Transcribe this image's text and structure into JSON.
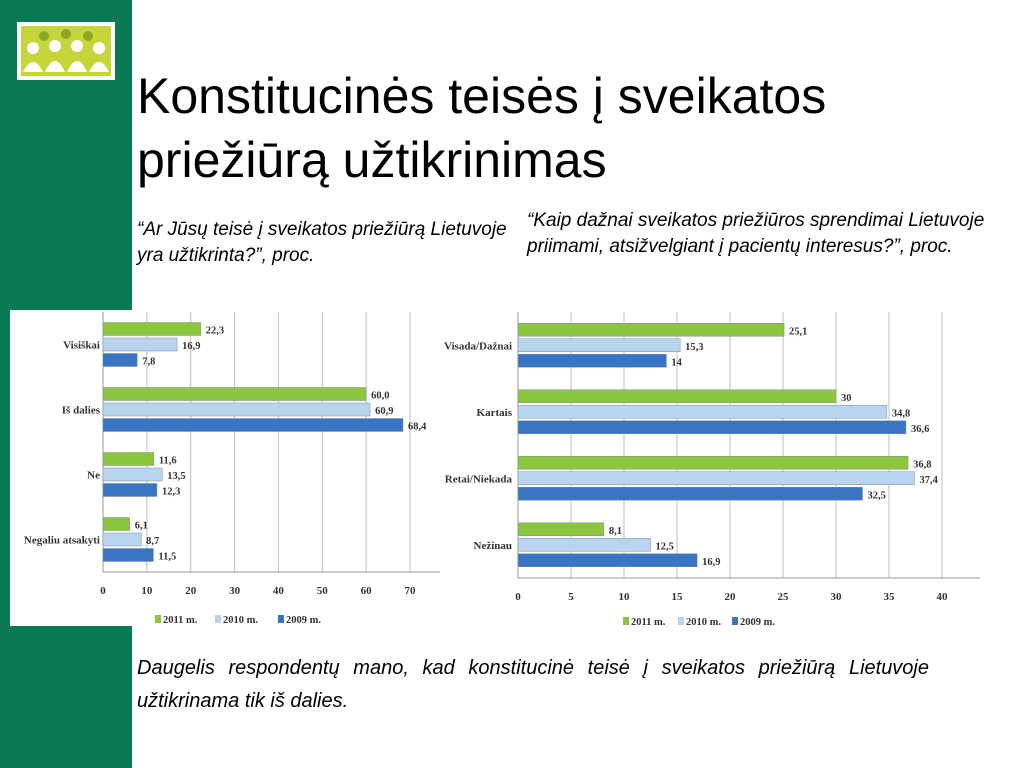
{
  "slide": {
    "title": "Konstitucinės teisės į sveikatos priežiūrą užtikrinimas",
    "question_left": "“Ar Jūsų teisė į sveikatos priežiūrą Lietuvoje yra užtikrinta?”, proc.",
    "question_right": "“Kaip dažnai sveikatos priežiūros sprendimai Lietuvoje priimami, atsižvelgiant į pacientų interesus?”, proc.",
    "conclusion": "Daugelis respondentų mano, kad konstitucinė teisė į sveikatos priežiūrą Lietuvoje užtikrinama tik iš dalies.",
    "colors": {
      "sidebar": "#0a7a52",
      "series_2011": "#8cc63f",
      "series_2010": "#b8d4ee",
      "series_2009": "#3a75c4"
    }
  },
  "chart_data": [
    {
      "type": "bar",
      "orientation": "horizontal",
      "categories": [
        "Visiškai",
        "Iš dalies",
        "Ne",
        "Negaliu atsakyti"
      ],
      "series": [
        {
          "name": "2011 m.",
          "values": [
            22.3,
            60.0,
            11.6,
            6.1
          ],
          "labels": [
            "22,3",
            "60,0",
            "11,6",
            "6,1"
          ]
        },
        {
          "name": "2010 m.",
          "values": [
            16.9,
            60.9,
            13.5,
            8.7
          ],
          "labels": [
            "16,9",
            "60,9",
            "13,5",
            "8,7"
          ]
        },
        {
          "name": "2009 m.",
          "values": [
            7.8,
            68.4,
            12.3,
            11.5
          ],
          "labels": [
            "7,8",
            "68,4",
            "12,3",
            "11,5"
          ]
        }
      ],
      "xlim": [
        0,
        70
      ],
      "ticks": [
        0,
        10,
        20,
        30,
        40,
        50,
        60,
        70
      ],
      "grid": true,
      "legend": "bottom"
    },
    {
      "type": "bar",
      "orientation": "horizontal",
      "categories": [
        "Visada/Dažnai",
        "Kartais",
        "Retai/Niekada",
        "Nežinau"
      ],
      "series": [
        {
          "name": "2011 m.",
          "values": [
            25.1,
            30,
            36.8,
            8.1
          ],
          "labels": [
            "25,1",
            "30",
            "36,8",
            "8,1"
          ]
        },
        {
          "name": "2010 m.",
          "values": [
            15.3,
            34.8,
            37.4,
            12.5
          ],
          "labels": [
            "15,3",
            "34,8",
            "37,4",
            "12,5"
          ]
        },
        {
          "name": "2009 m.",
          "values": [
            14,
            36.6,
            32.5,
            16.9
          ],
          "labels": [
            "14",
            "36,6",
            "32,5",
            "16,9"
          ]
        }
      ],
      "xlim": [
        0,
        40
      ],
      "ticks": [
        0,
        5,
        10,
        15,
        20,
        25,
        30,
        35,
        40
      ],
      "grid": true,
      "legend": "bottom"
    }
  ]
}
